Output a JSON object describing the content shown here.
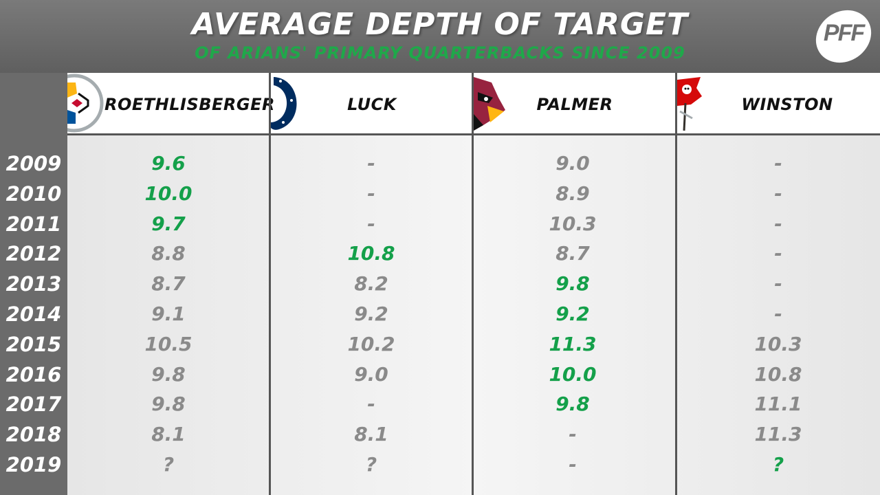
{
  "title": "AVERAGE DEPTH OF TARGET",
  "subtitle": "OF ARIANS' PRIMARY QUARTERBACKS SINCE 2009",
  "brand": "PFF",
  "colors": {
    "highlight": "#14a04a",
    "normal": "#8a8a8a",
    "year_text": "#ffffff",
    "subtitle": "#1fa84a"
  },
  "chart_data": {
    "type": "table",
    "title": "AVERAGE DEPTH OF TARGET",
    "subtitle": "OF ARIANS' PRIMARY QUARTERBACKS SINCE 2009",
    "columns": [
      {
        "name": "ROETHLISBERGER",
        "logo": "steelers-logo"
      },
      {
        "name": "LUCK",
        "logo": "colts-horseshoe-logo"
      },
      {
        "name": "PALMER",
        "logo": "cardinals-logo"
      },
      {
        "name": "WINSTON",
        "logo": "buccaneers-flag-logo"
      }
    ],
    "rows": [
      {
        "year": "2009",
        "values": [
          "9.6",
          "-",
          "9.0",
          "-"
        ],
        "highlight": [
          true,
          false,
          false,
          false
        ]
      },
      {
        "year": "2010",
        "values": [
          "10.0",
          "-",
          "8.9",
          "-"
        ],
        "highlight": [
          true,
          false,
          false,
          false
        ]
      },
      {
        "year": "2011",
        "values": [
          "9.7",
          "-",
          "10.3",
          "-"
        ],
        "highlight": [
          true,
          false,
          false,
          false
        ]
      },
      {
        "year": "2012",
        "values": [
          "8.8",
          "10.8",
          "8.7",
          "-"
        ],
        "highlight": [
          false,
          true,
          false,
          false
        ]
      },
      {
        "year": "2013",
        "values": [
          "8.7",
          "8.2",
          "9.8",
          "-"
        ],
        "highlight": [
          false,
          false,
          true,
          false
        ]
      },
      {
        "year": "2014",
        "values": [
          "9.1",
          "9.2",
          "9.2",
          "-"
        ],
        "highlight": [
          false,
          false,
          true,
          false
        ]
      },
      {
        "year": "2015",
        "values": [
          "10.5",
          "10.2",
          "11.3",
          "10.3"
        ],
        "highlight": [
          false,
          false,
          true,
          false
        ]
      },
      {
        "year": "2016",
        "values": [
          "9.8",
          "9.0",
          "10.0",
          "10.8"
        ],
        "highlight": [
          false,
          false,
          true,
          false
        ]
      },
      {
        "year": "2017",
        "values": [
          "9.8",
          "-",
          "9.8",
          "11.1"
        ],
        "highlight": [
          false,
          false,
          true,
          false
        ]
      },
      {
        "year": "2018",
        "values": [
          "8.1",
          "8.1",
          "-",
          "11.3"
        ],
        "highlight": [
          false,
          false,
          false,
          false
        ]
      },
      {
        "year": "2019",
        "values": [
          "?",
          "?",
          "-",
          "?"
        ],
        "highlight": [
          false,
          false,
          false,
          true
        ]
      }
    ]
  }
}
